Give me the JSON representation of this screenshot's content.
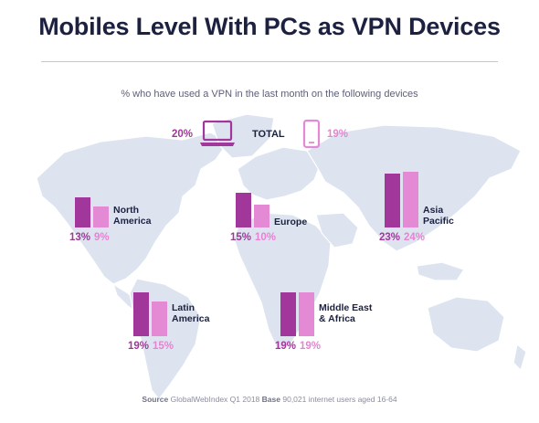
{
  "title": "Mobiles Level With PCs as VPN Devices",
  "subtitle": "% who have used a VPN in the last month on the following devices",
  "total": {
    "label": "TOTAL",
    "pc": "20%",
    "mobile": "19%",
    "pc_icon": "laptop-icon",
    "mobile_icon": "smartphone-icon"
  },
  "colors": {
    "pc": "#a1379a",
    "mobile": "#e48ad4",
    "map": "#dde4ef",
    "title": "#1c2140"
  },
  "source": {
    "label": "Source",
    "text": "GlobalWebIndex Q1 2018",
    "base_label": "Base",
    "base_text": "90,021 internet users aged 16-64"
  },
  "chart_data": {
    "type": "bar",
    "title": "Mobiles Level With PCs as VPN Devices",
    "subtitle": "% who have used a VPN in the last month on the following devices",
    "unit": "%",
    "categories": [
      "North America",
      "Europe",
      "Asia Pacific",
      "Latin America",
      "Middle East & Africa"
    ],
    "category_labels": [
      "North\nAmerica",
      "Europe",
      "Asia\nPacific",
      "Latin\nAmerica",
      "Middle East\n& Africa"
    ],
    "series": [
      {
        "values": [
          13,
          15,
          23,
          19,
          19
        ],
        "labels": [
          "13%",
          "15%",
          "23%",
          "19%",
          "19%"
        ]
      },
      {
        "values": [
          9,
          10,
          24,
          15,
          19
        ],
        "labels": [
          "9%",
          "10%",
          "24%",
          "15%",
          "19%"
        ]
      }
    ]
  }
}
